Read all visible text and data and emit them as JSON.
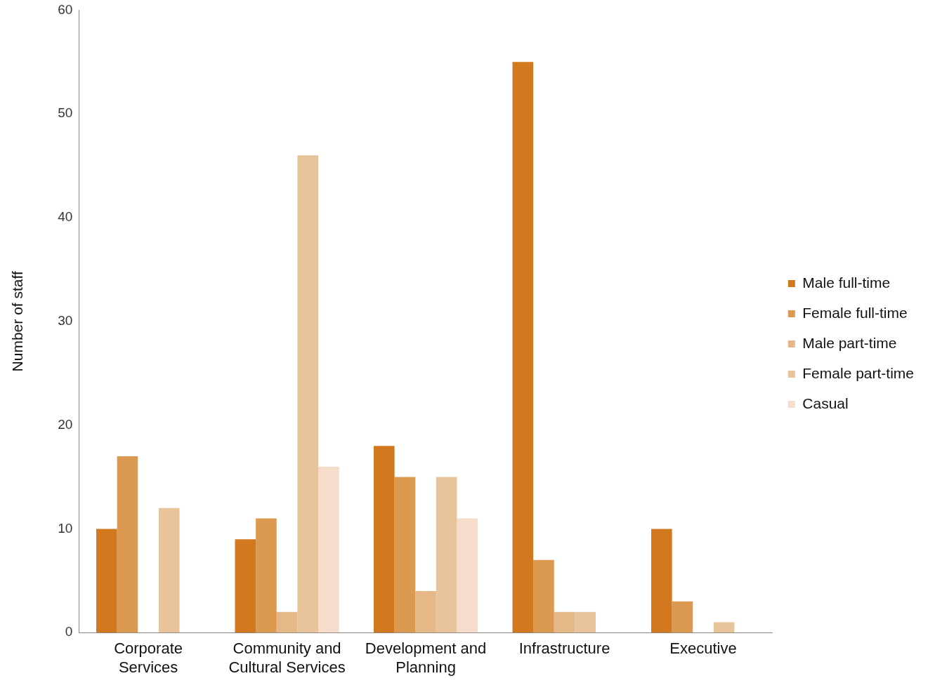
{
  "chart_data": {
    "type": "bar",
    "ylabel": "Number of staff",
    "categories": [
      "Corporate Services",
      "Community and Cultural Services",
      "Development and Planning",
      "Infrastructure",
      "Executive"
    ],
    "series": [
      {
        "name": "Male full-time",
        "color": "#d2781e",
        "values": [
          10,
          9,
          18,
          55,
          10
        ]
      },
      {
        "name": "Female full-time",
        "color": "#dc9a50",
        "values": [
          17,
          11,
          15,
          7,
          3
        ]
      },
      {
        "name": "Male part-time",
        "color": "#e6b888",
        "values": [
          0,
          2,
          4,
          2,
          0
        ]
      },
      {
        "name": "Female part-time",
        "color": "#e8c49a",
        "values": [
          12,
          46,
          15,
          2,
          1
        ]
      },
      {
        "name": "Casual",
        "color": "#f5dccb",
        "values": [
          0,
          16,
          11,
          0,
          0
        ]
      }
    ],
    "ylim": [
      0,
      60
    ],
    "yticks": [
      0,
      10,
      20,
      30,
      40,
      50,
      60
    ],
    "grid": false,
    "legend": "right"
  }
}
